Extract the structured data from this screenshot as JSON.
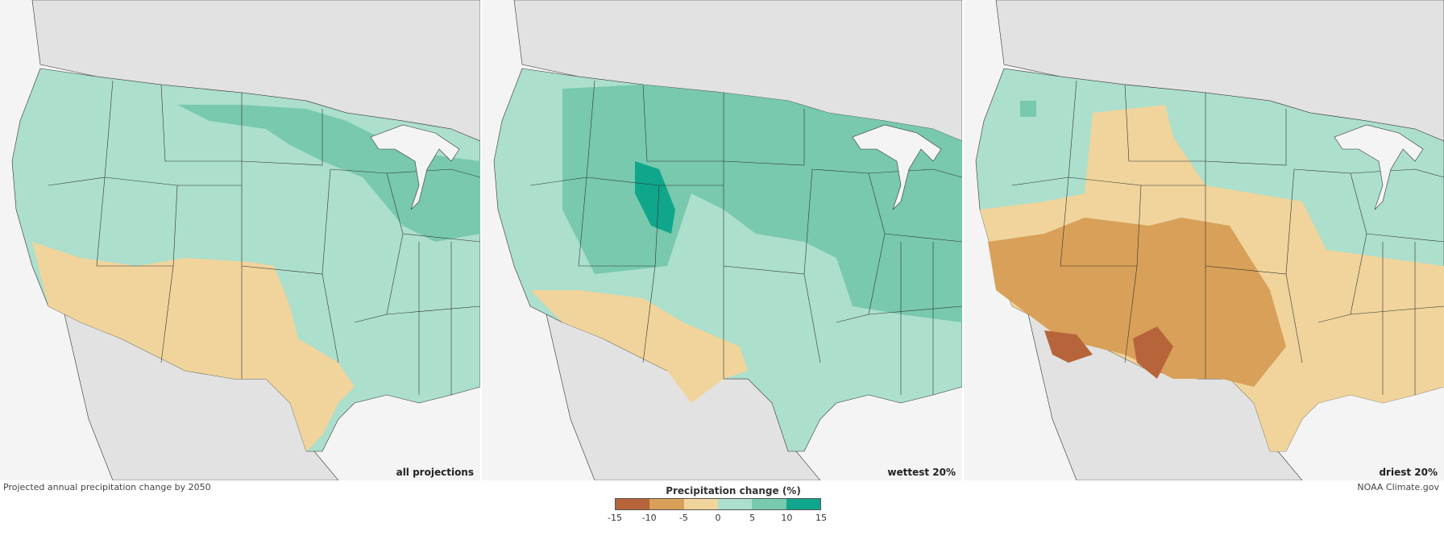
{
  "panels": [
    {
      "label": "all projections"
    },
    {
      "label": "wettest 20%"
    },
    {
      "label": "driest 20%"
    }
  ],
  "footer": {
    "left_caption": "Projected annual precipitation change by 2050",
    "credit": "NOAA Climate.gov"
  },
  "legend": {
    "title": "Precipitation change (%)",
    "ticks": [
      "-15",
      "-10",
      "-5",
      "0",
      "5",
      "10",
      "15"
    ],
    "colors": [
      "#b8643b",
      "#d8a058",
      "#f0d49c",
      "#acdfcc",
      "#78c9ae",
      "#0fa68c"
    ]
  },
  "map_colors": {
    "ocean": "#f4f4f4",
    "outside_land": "#e2e2e2",
    "dry_strong": "#b8643b",
    "dry_moderate": "#d8a058",
    "dry_slight": "#f0d49c",
    "wet_slight": "#acdfcc",
    "wet_moderate": "#78c9ae",
    "wet_strong": "#0fa68c"
  }
}
